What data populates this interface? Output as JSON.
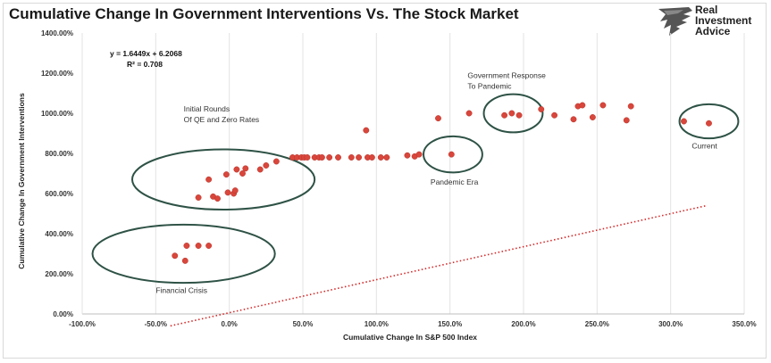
{
  "title": "Cumulative Change In Government Interventions Vs. The Stock Market",
  "brand": {
    "lines": [
      "Real",
      "Investment",
      "Advice"
    ],
    "icon": "eagle-logo-icon"
  },
  "chart_data": {
    "type": "scatter",
    "xlabel": "Cumulative Change In S&P 500 Index",
    "ylabel": "Cumulative Change In Government Interventions",
    "xlim": [
      -100,
      350
    ],
    "ylim": [
      0,
      1400
    ],
    "x_ticks": [
      "-100.0%",
      "-50.0%",
      "0.0%",
      "50.0%",
      "100.0%",
      "150.0%",
      "200.0%",
      "250.0%",
      "300.0%",
      "350.0%"
    ],
    "y_ticks": [
      "0.00%",
      "200.00%",
      "400.00%",
      "600.00%",
      "800.00%",
      "1000.00%",
      "1200.00%",
      "1400.00%"
    ],
    "grid": "vertical",
    "marker_color": "#d9463b",
    "trendline_color": "#d62728",
    "equation": "y = 1.6449x + 6.2068",
    "r_squared": "R² = 0.708",
    "trendline_range": [
      -40,
      325
    ],
    "points": [
      [
        -37,
        290
      ],
      [
        -30,
        265
      ],
      [
        -29,
        340
      ],
      [
        -21,
        340
      ],
      [
        -14,
        340
      ],
      [
        -21,
        580
      ],
      [
        -14,
        670
      ],
      [
        -11,
        585
      ],
      [
        -8,
        575
      ],
      [
        -2,
        695
      ],
      [
        -1,
        605
      ],
      [
        3,
        600
      ],
      [
        4,
        615
      ],
      [
        5,
        720
      ],
      [
        9,
        700
      ],
      [
        11,
        725
      ],
      [
        21,
        720
      ],
      [
        25,
        740
      ],
      [
        32,
        760
      ],
      [
        43,
        780
      ],
      [
        46,
        780
      ],
      [
        49,
        780
      ],
      [
        51,
        780
      ],
      [
        53,
        780
      ],
      [
        58,
        780
      ],
      [
        61,
        780
      ],
      [
        63,
        780
      ],
      [
        68,
        780
      ],
      [
        74,
        780
      ],
      [
        83,
        780
      ],
      [
        88,
        780
      ],
      [
        93,
        915
      ],
      [
        94,
        780
      ],
      [
        97,
        780
      ],
      [
        103,
        780
      ],
      [
        107,
        780
      ],
      [
        121,
        790
      ],
      [
        126,
        785
      ],
      [
        129,
        795
      ],
      [
        142,
        975
      ],
      [
        151,
        795
      ],
      [
        163,
        1000
      ],
      [
        187,
        990
      ],
      [
        192,
        1000
      ],
      [
        197,
        990
      ],
      [
        212,
        1020
      ],
      [
        221,
        990
      ],
      [
        234,
        970
      ],
      [
        237,
        1035
      ],
      [
        240,
        1040
      ],
      [
        247,
        980
      ],
      [
        254,
        1040
      ],
      [
        270,
        965
      ],
      [
        273,
        1035
      ],
      [
        309,
        960
      ],
      [
        326,
        950
      ]
    ],
    "annotations": [
      {
        "lines": [
          "Initial Rounds",
          "Of QE and Zero Rates"
        ]
      },
      {
        "lines": [
          "Government Response",
          "To Pandemic"
        ]
      },
      {
        "lines": [
          "Pandemic Era"
        ]
      },
      {
        "lines": [
          "Current"
        ]
      },
      {
        "lines": [
          "Financial Crisis"
        ]
      }
    ],
    "circle_color": "#2e5246"
  }
}
